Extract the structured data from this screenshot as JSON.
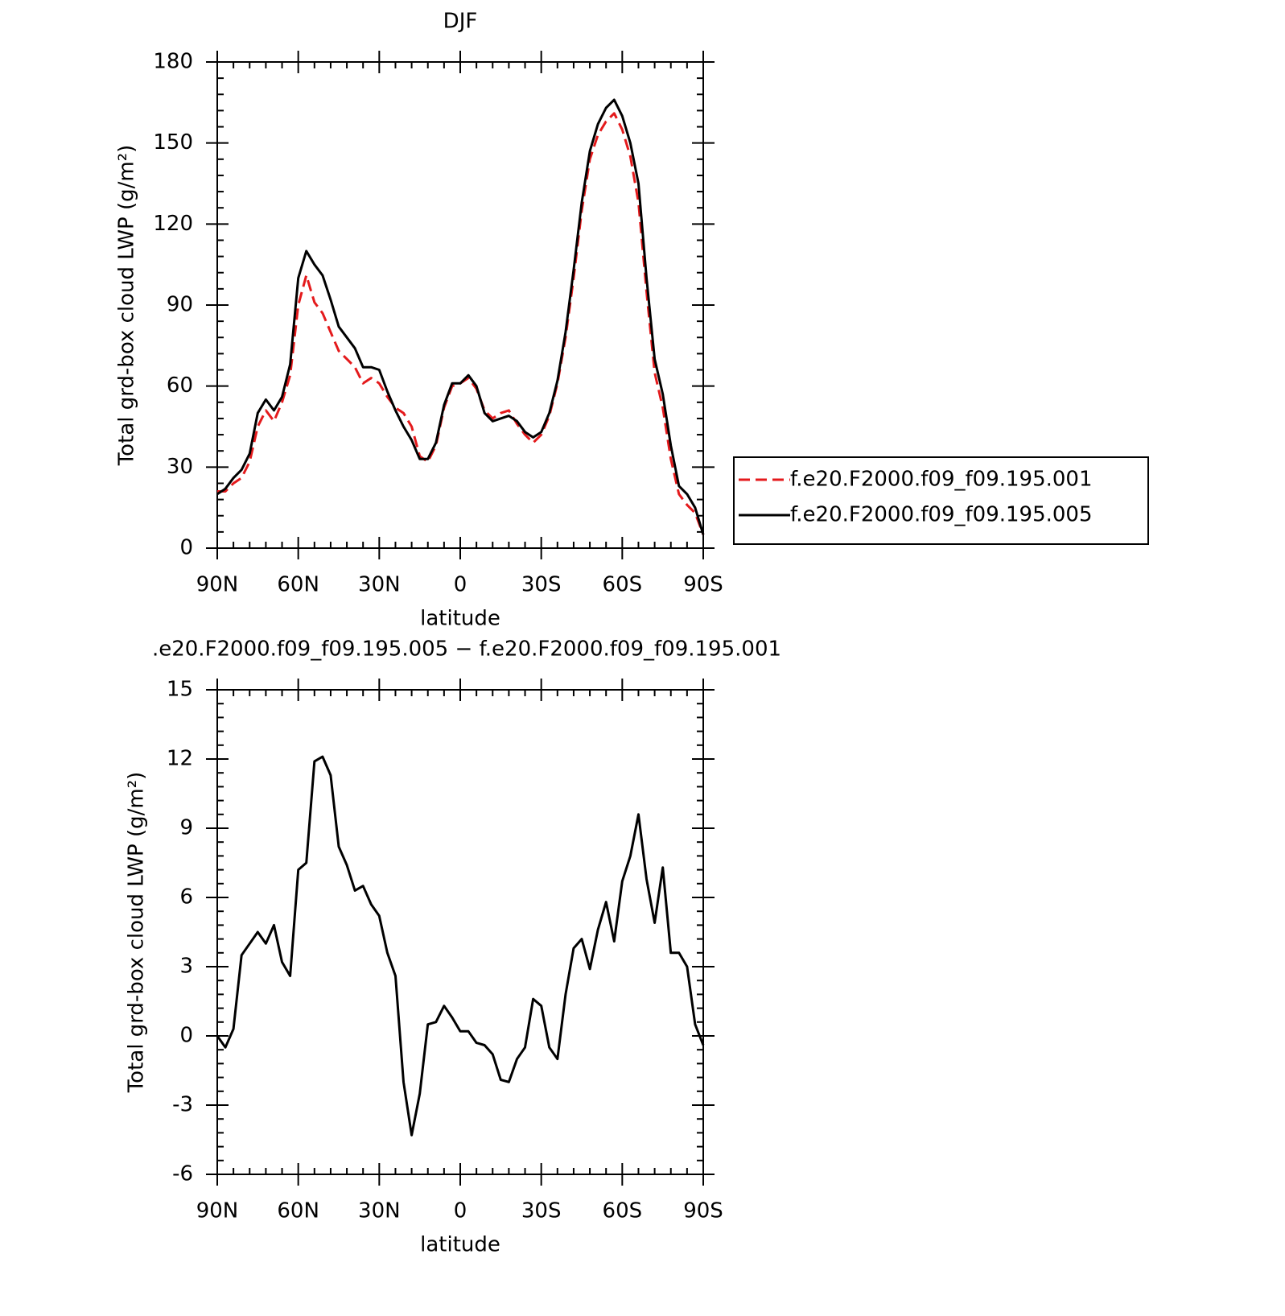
{
  "chart_data": [
    {
      "type": "line",
      "title": "DJF",
      "x_label": "latitude",
      "y_label": "Total grd-box cloud LWP (g/m²)",
      "x": [
        90,
        87,
        84,
        81,
        78,
        75,
        72,
        69,
        66,
        63,
        60,
        57,
        54,
        51,
        48,
        45,
        42,
        39,
        36,
        33,
        30,
        27,
        24,
        21,
        18,
        15,
        12,
        9,
        6,
        3,
        0,
        -3,
        -6,
        -9,
        -12,
        -15,
        -18,
        -21,
        -24,
        -27,
        -30,
        -33,
        -36,
        -39,
        -42,
        -45,
        -48,
        -51,
        -54,
        -57,
        -60,
        -63,
        -66,
        -69,
        -72,
        -75,
        -78,
        -81,
        -84,
        -87,
        -90
      ],
      "series": [
        {
          "name": "f.e20.F2000.f09_f09.195.001",
          "color": "#e41a1c",
          "dash": true,
          "values": [
            21,
            21,
            24,
            26,
            32,
            45,
            51,
            47,
            54,
            64,
            90,
            101,
            91,
            87,
            80,
            73,
            70,
            67,
            61,
            63,
            61,
            56,
            52,
            50,
            45,
            34,
            32,
            38,
            52,
            60,
            61,
            63,
            59,
            51,
            48,
            50,
            51,
            46,
            42,
            39,
            42,
            49,
            61,
            78,
            100,
            125,
            144,
            153,
            158,
            161,
            155,
            145,
            128,
            95,
            65,
            52,
            33,
            20,
            16,
            13,
            5
          ]
        },
        {
          "name": "f.e20.F2000.f09_f09.195.005",
          "color": "#000000",
          "dash": false,
          "values": [
            20,
            22,
            26,
            29,
            35,
            50,
            55,
            51,
            56,
            68,
            100,
            110,
            105,
            101,
            92,
            82,
            78,
            74,
            67,
            67,
            66,
            58,
            51,
            45,
            40,
            33,
            33,
            39,
            53,
            61,
            61,
            64,
            60,
            50,
            47,
            48,
            49,
            47,
            43,
            41,
            43,
            50,
            62,
            80,
            103,
            128,
            147,
            157,
            163,
            166,
            160,
            150,
            135,
            100,
            70,
            57,
            38,
            23,
            20,
            15,
            5
          ]
        }
      ],
      "xlim": [
        90,
        -90
      ],
      "ylim": [
        0,
        180
      ],
      "yticks": [
        0,
        30,
        60,
        90,
        120,
        150,
        180
      ],
      "xticks": [
        {
          "value": 90,
          "label": "90N"
        },
        {
          "value": 60,
          "label": "60N"
        },
        {
          "value": 30,
          "label": "30N"
        },
        0,
        {
          "value": -30,
          "label": "30S"
        },
        {
          "value": -60,
          "label": "60S"
        },
        {
          "value": -90,
          "label": "90S"
        }
      ],
      "legend": "right"
    },
    {
      "type": "line",
      "title": ".e20.F2000.f09_f09.195.005 − f.e20.F2000.f09_f09.195.001",
      "x_label": "latitude",
      "y_label": "Total grd-box cloud LWP (g/m²)",
      "x": [
        90,
        87,
        84,
        81,
        78,
        75,
        72,
        69,
        66,
        63,
        60,
        57,
        54,
        51,
        48,
        45,
        42,
        39,
        36,
        33,
        30,
        27,
        24,
        21,
        18,
        15,
        12,
        9,
        6,
        3,
        0,
        -3,
        -6,
        -9,
        -12,
        -15,
        -18,
        -21,
        -24,
        -27,
        -30,
        -33,
        -36,
        -39,
        -42,
        -45,
        -48,
        -51,
        -54,
        -57,
        -60,
        -63,
        -66,
        -69,
        -72,
        -75,
        -78,
        -81,
        -84,
        -87,
        -90
      ],
      "series": [
        {
          "color": "#000000",
          "dash": false,
          "values": [
            0,
            -0.5,
            0.3,
            3.5,
            4,
            4.5,
            4,
            4.8,
            3.2,
            2.6,
            7.2,
            7.5,
            11.9,
            12.1,
            11.3,
            8.2,
            7.4,
            6.3,
            6.5,
            5.7,
            5.2,
            3.6,
            2.6,
            -2,
            -4.3,
            -2.5,
            0.5,
            0.6,
            1.3,
            0.8,
            0.2,
            0.2,
            -0.3,
            -0.4,
            -0.8,
            -1.9,
            -2,
            -1,
            -0.5,
            1.6,
            1.3,
            -0.5,
            -1,
            1.8,
            3.8,
            4.2,
            2.9,
            4.6,
            5.8,
            4.1,
            6.7,
            7.8,
            9.6,
            6.8,
            4.9,
            7.3,
            3.6,
            3.6,
            3,
            0.5,
            -0.4
          ]
        }
      ],
      "xlim": [
        90,
        -90
      ],
      "ylim": [
        -6,
        15
      ],
      "yticks": [
        -6,
        -3,
        0,
        3,
        6,
        9,
        12,
        15
      ],
      "xticks": [
        {
          "value": 90,
          "label": "90N"
        },
        {
          "value": 60,
          "label": "60N"
        },
        {
          "value": 30,
          "label": "30N"
        },
        0,
        {
          "value": -30,
          "label": "30S"
        },
        {
          "value": -60,
          "label": "60S"
        },
        {
          "value": -90,
          "label": "90S"
        }
      ]
    }
  ]
}
